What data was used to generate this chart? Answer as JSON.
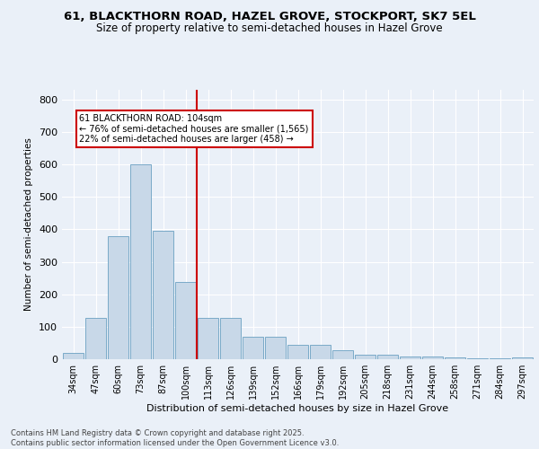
{
  "title": "61, BLACKTHORN ROAD, HAZEL GROVE, STOCKPORT, SK7 5EL",
  "subtitle": "Size of property relative to semi-detached houses in Hazel Grove",
  "xlabel": "Distribution of semi-detached houses by size in Hazel Grove",
  "ylabel": "Number of semi-detached properties",
  "bar_color": "#c8d8e8",
  "bar_edge_color": "#7aaac8",
  "categories": [
    "34sqm",
    "47sqm",
    "60sqm",
    "73sqm",
    "87sqm",
    "100sqm",
    "113sqm",
    "126sqm",
    "139sqm",
    "152sqm",
    "166sqm",
    "179sqm",
    "192sqm",
    "205sqm",
    "218sqm",
    "231sqm",
    "244sqm",
    "258sqm",
    "271sqm",
    "284sqm",
    "297sqm"
  ],
  "values": [
    20,
    128,
    380,
    600,
    395,
    238,
    128,
    128,
    68,
    68,
    45,
    45,
    28,
    15,
    15,
    8,
    8,
    5,
    2,
    2,
    5
  ],
  "annotation_text": "61 BLACKTHORN ROAD: 104sqm\n← 76% of semi-detached houses are smaller (1,565)\n22% of semi-detached houses are larger (458) →",
  "annotation_box_color": "#ffffff",
  "annotation_box_edge_color": "#cc0000",
  "vline_color": "#cc0000",
  "vline_x": 5.5,
  "ylim": [
    0,
    830
  ],
  "yticks": [
    0,
    100,
    200,
    300,
    400,
    500,
    600,
    700,
    800
  ],
  "footer_text": "Contains HM Land Registry data © Crown copyright and database right 2025.\nContains public sector information licensed under the Open Government Licence v3.0.",
  "background_color": "#eaf0f8",
  "plot_bg_color": "#eaf0f8",
  "grid_color": "#ffffff"
}
